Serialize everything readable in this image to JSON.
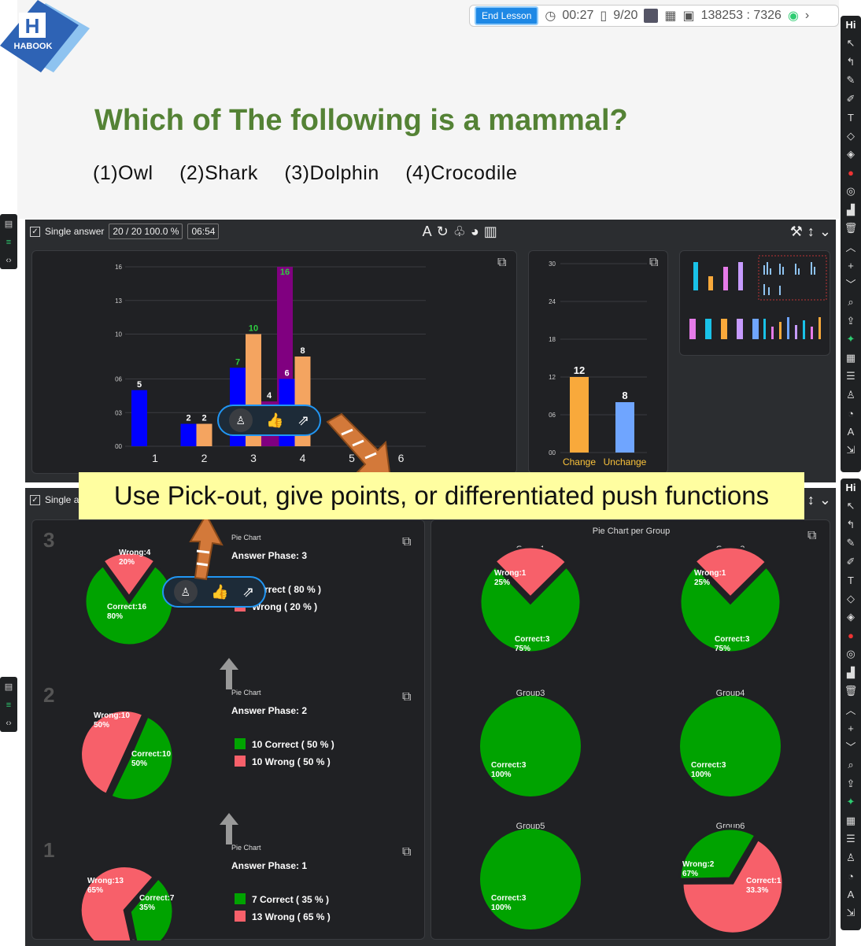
{
  "slide": {
    "logo_text": "HABOOK",
    "question": "Which of The following is a mammal?",
    "options": [
      "(1)Owl",
      "(2)Shark",
      "(3)Dolphin",
      "(4)Crocodile"
    ]
  },
  "status_bar": {
    "end_lesson": "End Lesson",
    "timer": "00:27",
    "page": "9/20",
    "code": "138253 : 7326"
  },
  "top_panel": {
    "single_answer": "Single answer",
    "count": "20 / 20  100.0 %",
    "time": "06:54"
  },
  "bottom_panel": {
    "single_answer": "Single a"
  },
  "chart_data": [
    {
      "type": "bar",
      "categories": [
        "1",
        "2",
        "3",
        "4",
        "5",
        "6"
      ],
      "series": [
        {
          "color": "#0000ff",
          "values": [
            5,
            2,
            7,
            6,
            0,
            0
          ]
        },
        {
          "color": "#f4a460",
          "values": [
            0,
            2,
            10,
            8,
            0,
            0
          ]
        },
        {
          "color": "#800080",
          "values": [
            0,
            0,
            4,
            0,
            0,
            0
          ]
        },
        {
          "color": "#800080",
          "values": [
            0,
            0,
            16,
            0,
            0,
            0
          ]
        }
      ],
      "yticks": [
        "00",
        "03",
        "06",
        "10",
        "13",
        "16"
      ],
      "ylim": [
        0,
        16
      ]
    },
    {
      "type": "bar",
      "categories": [
        "Change",
        "Unchange"
      ],
      "values": [
        12,
        8
      ],
      "colors": [
        "#f9a93b",
        "#6fa5ff"
      ],
      "yticks": [
        "00",
        "06",
        "12",
        "18",
        "24",
        "30"
      ],
      "ylim": [
        0,
        30
      ]
    },
    {
      "type": "pie",
      "phases": [
        {
          "badge": "3",
          "label": "Pie Chart",
          "title": "Answer Phase: 3",
          "correct": 16,
          "wrong": 4,
          "correct_label": "Correct:16",
          "correct_pct": "80%",
          "wrong_label": "Wrong:4",
          "wrong_pct": "20%",
          "legend_correct": "Correct ( 80 % )",
          "legend_wrong": "Wrong ( 20 % )"
        },
        {
          "badge": "2",
          "label": "Pie Chart",
          "title": "Answer Phase: 2",
          "correct": 10,
          "wrong": 10,
          "correct_label": "Correct:10",
          "correct_pct": "50%",
          "wrong_label": "Wrong:10",
          "wrong_pct": "50%",
          "legend_correct": "10 Correct ( 50 % )",
          "legend_wrong": "10 Wrong ( 50 % )"
        },
        {
          "badge": "1",
          "label": "Pie Chart",
          "title": "Answer Phase: 1",
          "correct": 7,
          "wrong": 13,
          "correct_label": "Correct:7",
          "correct_pct": "35%",
          "wrong_label": "Wrong:13",
          "wrong_pct": "65%",
          "legend_correct": "7 Correct ( 35 % )",
          "legend_wrong": "13 Wrong ( 65 % )"
        }
      ]
    },
    {
      "type": "pie",
      "title": "Pie Chart per Group",
      "groups": [
        {
          "name": "Group1",
          "correct": 3,
          "wrong": 1,
          "correct_label": "Correct:3",
          "correct_pct": "75%",
          "wrong_label": "Wrong:1",
          "wrong_pct": "25%"
        },
        {
          "name": "Group2",
          "correct": 3,
          "wrong": 1,
          "correct_label": "Correct:3",
          "correct_pct": "75%",
          "wrong_label": "Wrong:1",
          "wrong_pct": "25%"
        },
        {
          "name": "Group3",
          "correct": 3,
          "wrong": 0,
          "correct_label": "Correct:3",
          "correct_pct": "100%"
        },
        {
          "name": "Group4",
          "correct": 3,
          "wrong": 0,
          "correct_label": "Correct:3",
          "correct_pct": "100%"
        },
        {
          "name": "Group5",
          "correct": 3,
          "wrong": 0,
          "correct_label": "Correct:3",
          "correct_pct": "100%"
        },
        {
          "name": "Group6",
          "correct": 1,
          "wrong": 2,
          "correct_label": "Correct:1",
          "correct_pct": "33.3%",
          "wrong_label": "Wrong:2",
          "wrong_pct": "67%"
        }
      ]
    }
  ],
  "banner": "Use Pick-out, give points, or differentiated push functions",
  "toolbar": {
    "hi": "Hi"
  },
  "colors": {
    "correct": "#00a300",
    "wrong": "#f7606a",
    "title_green": "#548235"
  }
}
